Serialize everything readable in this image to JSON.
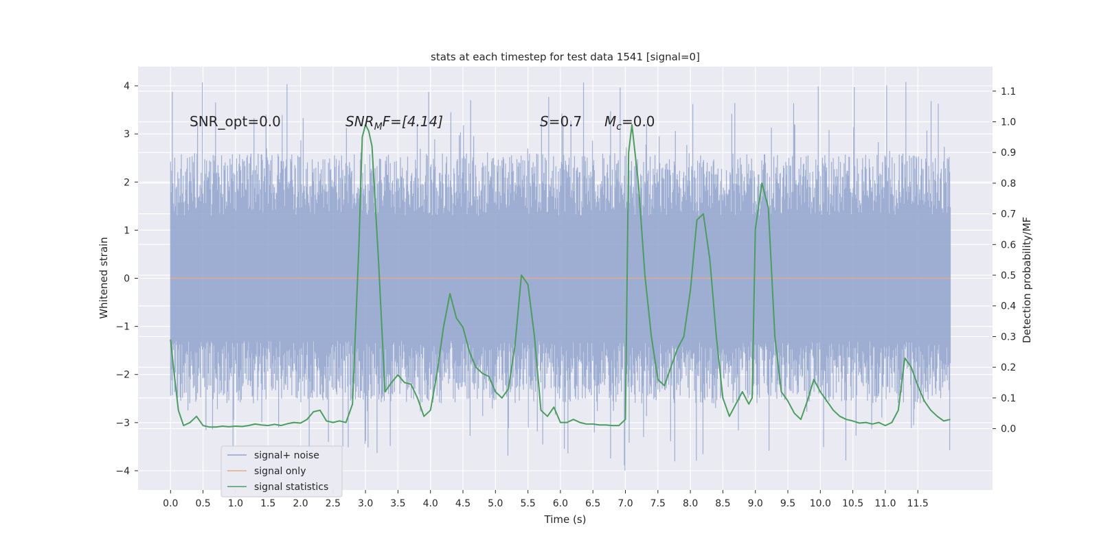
{
  "chart_data": {
    "type": "line",
    "title": "stats at each timestep for test data 1541 [signal=0]",
    "xlabel": "Time (s)",
    "ylabel_left": "Whitened strain",
    "ylabel_right": "Detection probability/MF",
    "xlim": [
      -0.5,
      12.65
    ],
    "ylim_left": [
      -4.4,
      4.4
    ],
    "ylim_right": [
      -0.2,
      1.18
    ],
    "x_ticks": [
      "0.0",
      "0.5",
      "1.0",
      "1.5",
      "2.0",
      "2.5",
      "3.0",
      "3.5",
      "4.0",
      "4.5",
      "5.0",
      "5.5",
      "6.0",
      "6.5",
      "7.0",
      "7.5",
      "8.0",
      "8.5",
      "9.0",
      "9.5",
      "10.0",
      "10.5",
      "11.0",
      "11.5"
    ],
    "y_left_ticks": [
      "4",
      "3",
      "2",
      "1",
      "0",
      "−1",
      "−2",
      "−3",
      "−4"
    ],
    "y_right_ticks": [
      "1.1",
      "1.0",
      "0.9",
      "0.8",
      "0.7",
      "0.6",
      "0.5",
      "0.4",
      "0.3",
      "0.2",
      "0.1",
      "0.0"
    ],
    "grid": true,
    "annotations": {
      "snr_opt": "SNR_opt=0.0",
      "snr_mf_base": "SNR",
      "snr_mf_sub": "M",
      "snr_mf_rest": "F=[4.14]",
      "s_base": "S",
      "s_rest": "=0.7",
      "mc_base": "M",
      "mc_sub": "c",
      "mc_rest": "=0.0"
    },
    "legend_position": "lower-left",
    "series": [
      {
        "name": "signal+ noise",
        "axis": "left",
        "color": "#8fa3cc",
        "x_range": [
          0.0,
          12.0
        ],
        "envelope_upper": 2.6,
        "envelope_lower": -2.6,
        "peak_max": 4.1,
        "peak_min": -4.0
      },
      {
        "name": "signal only",
        "axis": "left",
        "color": "#e8a98a",
        "x": [
          0.0,
          12.0
        ],
        "y": [
          0.0,
          0.0
        ]
      },
      {
        "name": "signal statistics",
        "axis": "right",
        "color": "#4a9e5c",
        "x": [
          0.0,
          0.06,
          0.12,
          0.2,
          0.3,
          0.4,
          0.5,
          0.6,
          0.7,
          0.8,
          0.9,
          1.0,
          1.1,
          1.2,
          1.3,
          1.4,
          1.5,
          1.6,
          1.7,
          1.8,
          1.9,
          2.0,
          2.1,
          2.2,
          2.3,
          2.4,
          2.5,
          2.6,
          2.7,
          2.8,
          2.9,
          2.95,
          3.0,
          3.05,
          3.1,
          3.2,
          3.3,
          3.4,
          3.5,
          3.6,
          3.7,
          3.8,
          3.9,
          4.0,
          4.1,
          4.2,
          4.3,
          4.4,
          4.5,
          4.6,
          4.7,
          4.8,
          4.9,
          5.0,
          5.1,
          5.2,
          5.3,
          5.4,
          5.5,
          5.6,
          5.7,
          5.8,
          5.9,
          6.0,
          6.1,
          6.2,
          6.3,
          6.4,
          6.5,
          6.6,
          6.7,
          6.8,
          6.9,
          7.0,
          7.05,
          7.1,
          7.2,
          7.3,
          7.4,
          7.5,
          7.6,
          7.7,
          7.8,
          7.9,
          8.0,
          8.1,
          8.2,
          8.3,
          8.4,
          8.5,
          8.6,
          8.7,
          8.8,
          8.9,
          8.95,
          9.0,
          9.1,
          9.2,
          9.3,
          9.4,
          9.5,
          9.6,
          9.7,
          9.8,
          9.9,
          10.0,
          10.1,
          10.2,
          10.3,
          10.4,
          10.5,
          10.6,
          10.7,
          10.8,
          10.9,
          11.0,
          11.1,
          11.2,
          11.3,
          11.4,
          11.5,
          11.6,
          11.7,
          11.8,
          11.9,
          12.0
        ],
        "y": [
          0.29,
          0.17,
          0.06,
          0.01,
          0.02,
          0.04,
          0.01,
          0.005,
          0.005,
          0.008,
          0.006,
          0.008,
          0.007,
          0.01,
          0.015,
          0.012,
          0.01,
          0.014,
          0.01,
          0.016,
          0.02,
          0.018,
          0.03,
          0.055,
          0.06,
          0.025,
          0.02,
          0.025,
          0.02,
          0.08,
          0.6,
          0.95,
          0.99,
          0.97,
          0.92,
          0.55,
          0.12,
          0.15,
          0.175,
          0.15,
          0.145,
          0.1,
          0.04,
          0.06,
          0.18,
          0.33,
          0.44,
          0.36,
          0.33,
          0.25,
          0.2,
          0.18,
          0.17,
          0.12,
          0.1,
          0.13,
          0.27,
          0.5,
          0.47,
          0.3,
          0.06,
          0.04,
          0.07,
          0.02,
          0.02,
          0.03,
          0.02,
          0.015,
          0.015,
          0.012,
          0.012,
          0.01,
          0.01,
          0.03,
          0.9,
          0.99,
          0.8,
          0.5,
          0.3,
          0.16,
          0.14,
          0.2,
          0.26,
          0.3,
          0.45,
          0.68,
          0.7,
          0.55,
          0.3,
          0.1,
          0.04,
          0.08,
          0.12,
          0.08,
          0.1,
          0.65,
          0.8,
          0.72,
          0.3,
          0.12,
          0.09,
          0.05,
          0.03,
          0.09,
          0.16,
          0.12,
          0.09,
          0.06,
          0.04,
          0.03,
          0.025,
          0.018,
          0.02,
          0.015,
          0.02,
          0.01,
          0.02,
          0.06,
          0.23,
          0.2,
          0.14,
          0.09,
          0.06,
          0.04,
          0.025,
          0.03
        ]
      }
    ]
  }
}
